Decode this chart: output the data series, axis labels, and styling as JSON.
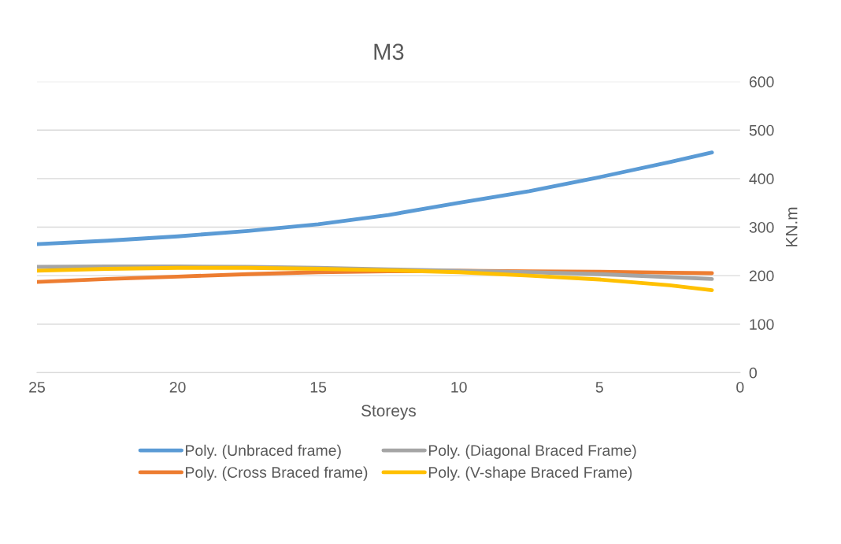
{
  "chart_data": {
    "type": "line",
    "title": "M3",
    "xlabel": "Storeys",
    "ylabel": "KN.m",
    "x": [
      25,
      22.5,
      20,
      17.5,
      15,
      12.5,
      10,
      7.5,
      5,
      2.5,
      1
    ],
    "xlim": [
      25,
      0
    ],
    "xticks": [
      25,
      20,
      15,
      10,
      5,
      0
    ],
    "ylim": [
      0,
      600
    ],
    "yticks": [
      0,
      100,
      200,
      300,
      400,
      500,
      600
    ],
    "grid": "y",
    "legend": "bottom",
    "marker": "none",
    "line_style": "solid",
    "series": [
      {
        "name": "Poly. (Unbraced frame)",
        "color": "#5b9bd5",
        "values": [
          265,
          272,
          281,
          292,
          306,
          325,
          350,
          374,
          403,
          434,
          454
        ]
      },
      {
        "name": "Poly. (Cross Braced frame)",
        "color": "#ed7d31",
        "values": [
          187,
          193,
          198,
          203,
          207,
          209,
          210,
          209,
          208,
          206,
          205
        ]
      },
      {
        "name": "Poly. (Diagonal Braced Frame)",
        "color": "#a5a5a5",
        "values": [
          218,
          219,
          219,
          218,
          216,
          213,
          210,
          207,
          203,
          197,
          193
        ]
      },
      {
        "name": "Poly. (V-shape Braced Frame)",
        "color": "#ffc000",
        "values": [
          210,
          214,
          216,
          216,
          214,
          211,
          207,
          200,
          192,
          180,
          170
        ]
      }
    ]
  }
}
